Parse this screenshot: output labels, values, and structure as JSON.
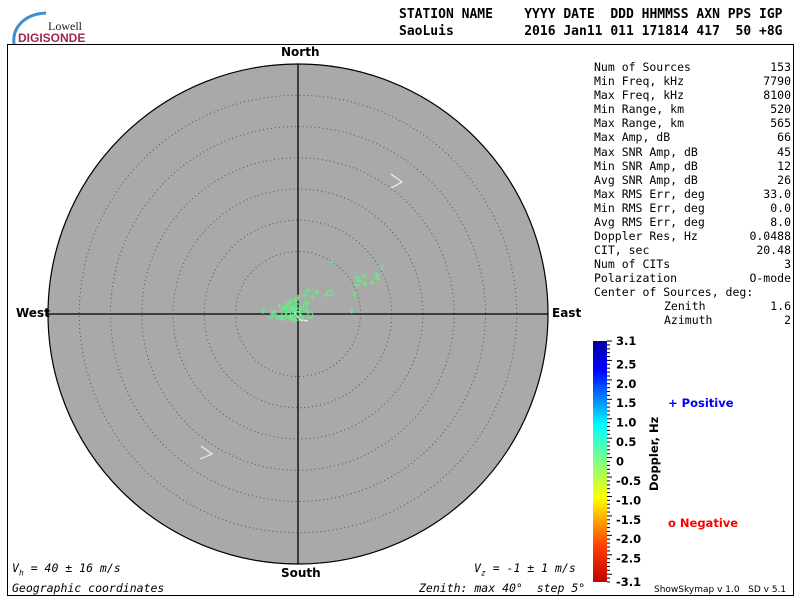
{
  "logo": {
    "line1": "Lowell",
    "line2": "DIGISONDE"
  },
  "header": {
    "labels": "STATION NAME    YYYY DATE  DDD HHMMSS AXN PPS IGP",
    "values": "SaoLuis         2016 Jan11 011 171814 417  50 +8G"
  },
  "stats": [
    {
      "label": "Num of Sources",
      "value": "153"
    },
    {
      "label": "Min Freq, kHz",
      "value": "7790"
    },
    {
      "label": "Max Freq, kHz",
      "value": "8100"
    },
    {
      "label": "Min Range, km",
      "value": "520"
    },
    {
      "label": "Max Range, km",
      "value": "565"
    },
    {
      "label": "Max Amp, dB",
      "value": "66"
    },
    {
      "label": "Max SNR Amp, dB",
      "value": "45"
    },
    {
      "label": "Min SNR Amp, dB",
      "value": "12"
    },
    {
      "label": "Avg SNR Amp, dB",
      "value": "26"
    },
    {
      "label": "Max RMS Err, deg",
      "value": "33.0"
    },
    {
      "label": "Min RMS Err, deg",
      "value": "0.0"
    },
    {
      "label": "Avg RMS Err, deg",
      "value": "8.0"
    },
    {
      "label": "Doppler Res, Hz",
      "value": "0.0488"
    },
    {
      "label": "CIT, sec",
      "value": "20.48"
    },
    {
      "label": "Num of CITs",
      "value": "3"
    },
    {
      "label": "Polarization",
      "value": "O-mode"
    }
  ],
  "center": {
    "title": "Center of Sources, deg:",
    "zenith_label": "Zenith",
    "zenith": "1.6",
    "azimuth_label": "Azimuth",
    "azimuth": "2"
  },
  "compass": {
    "north": "North",
    "south": "South",
    "east": "East",
    "west": "West"
  },
  "footer": {
    "vh_sym": "V",
    "vh_sub": "h",
    "vh_text": " = 40 ± 16 m/s",
    "vz_sym": "V",
    "vz_sub": "z",
    "vz_text": " = -1 ± 1 m/s",
    "coords": "Geographic coordinates",
    "zenith": "Zenith: max 40°  step 5°",
    "version": "ShowSkymap v 1.0   SD v 5.1"
  },
  "legend": {
    "positive": "Positive",
    "negative": "Negative",
    "positive_color": "#0000ff",
    "negative_color": "#ff0000"
  },
  "colors": {
    "disk": "#a9a9a9",
    "source": "#66ee88",
    "arrow": "#f0f0f0"
  },
  "chart_data": {
    "type": "scatter",
    "projection": "polar skymap, zenith 0-40 deg, rings every 5 deg",
    "zenith_max": 40,
    "zenith_step": 5,
    "colorbar": {
      "label": "Doppler, Hz",
      "range": [
        -3.1,
        3.1
      ],
      "ticks": [
        "3.1",
        "2.5",
        "2.0",
        "1.5",
        "1.0",
        "0.5",
        "0",
        "-0.5",
        "-1.0",
        "-1.5",
        "-2.0",
        "-2.5",
        "-3.1"
      ],
      "tick_values": [
        3.1,
        2.5,
        2.0,
        1.5,
        1.0,
        0.5,
        0,
        -0.5,
        -1.0,
        -1.5,
        -2.0,
        -2.5,
        -3.1
      ]
    },
    "sources_positive_east_north_deg": [
      [
        5.4,
        8.3
      ],
      [
        13.4,
        7.5
      ],
      [
        9.4,
        5.8
      ],
      [
        10.6,
        6.1
      ],
      [
        12.6,
        6.2
      ],
      [
        12.8,
        5.6
      ],
      [
        9.9,
        5.3
      ],
      [
        9.4,
        4.6
      ],
      [
        10.7,
        4.8
      ],
      [
        11.8,
        5.0
      ],
      [
        9.0,
        3.2
      ],
      [
        4.5,
        3.0
      ],
      [
        3.0,
        3.5
      ],
      [
        1.6,
        3.8
      ],
      [
        1.0,
        3.0
      ],
      [
        2.4,
        2.7
      ],
      [
        1.4,
        1.8
      ],
      [
        0,
        2.6
      ],
      [
        -0.5,
        2.2
      ],
      [
        -3.0,
        1.4
      ],
      [
        -5.6,
        0.5
      ],
      [
        -4.0,
        0
      ],
      [
        -2.6,
        -0.2
      ],
      [
        8.6,
        0.5
      ],
      [
        -0.9,
        -0.6
      ],
      [
        0.6,
        -0.5
      ],
      [
        -0.5,
        1.0
      ],
      [
        -1.0,
        1.2
      ],
      [
        -1.4,
        0.8
      ],
      [
        -0.3,
        0.4
      ],
      [
        -1.8,
        0.3
      ],
      [
        -2.2,
        0.9
      ],
      [
        -1.2,
        -0.2
      ],
      [
        -0.6,
        -0.1
      ],
      [
        0.2,
        0.8
      ],
      [
        -1.6,
        1.6
      ],
      [
        -2.0,
        -0.4
      ],
      [
        -2.6,
        0.6
      ],
      [
        -3.4,
        -0.4
      ],
      [
        -1.0,
        -0.8
      ],
      [
        0.4,
        0.2
      ],
      [
        0.9,
        1.2
      ],
      [
        -0.2,
        1.6
      ],
      [
        -1.9,
        1.2
      ],
      [
        -2.9,
        -0.6
      ],
      [
        -3.8,
        0.4
      ],
      [
        -0.8,
        0.6
      ],
      [
        -1.4,
        -0.6
      ],
      [
        0.2,
        -0.3
      ],
      [
        -2.4,
        -0.8
      ],
      [
        1.4,
        0.5
      ],
      [
        -0.4,
        -1.0
      ],
      [
        0.9,
        -0.8
      ],
      [
        -1.2,
        2.0
      ],
      [
        -4.5,
        -0.6
      ]
    ],
    "sources_negative_east_north_deg": [
      [
        5.1,
        3.4
      ],
      [
        2.0,
        -0.2
      ]
    ]
  }
}
